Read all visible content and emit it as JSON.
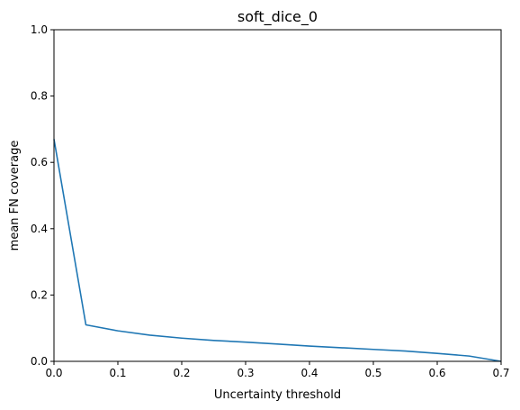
{
  "chart_data": {
    "type": "line",
    "title": "soft_dice_0",
    "xlabel": "Uncertainty threshold",
    "ylabel": "mean FN coverage",
    "xlim": [
      0,
      0.7
    ],
    "ylim": [
      0,
      1.0
    ],
    "x_ticks": [
      "0.0",
      "0.1",
      "0.2",
      "0.3",
      "0.4",
      "0.5",
      "0.6",
      "0.7"
    ],
    "y_ticks": [
      "0.0",
      "0.2",
      "0.4",
      "0.6",
      "0.8",
      "1.0"
    ],
    "grid": false,
    "line_color": "#1f77b4",
    "series": [
      {
        "x": [
          0.0,
          0.05,
          0.1,
          0.15,
          0.2,
          0.25,
          0.3,
          0.35,
          0.4,
          0.45,
          0.5,
          0.55,
          0.6,
          0.65,
          0.7
        ],
        "y": [
          0.67,
          0.11,
          0.092,
          0.079,
          0.07,
          0.063,
          0.058,
          0.052,
          0.046,
          0.041,
          0.036,
          0.031,
          0.024,
          0.016,
          0.0
        ]
      }
    ]
  }
}
